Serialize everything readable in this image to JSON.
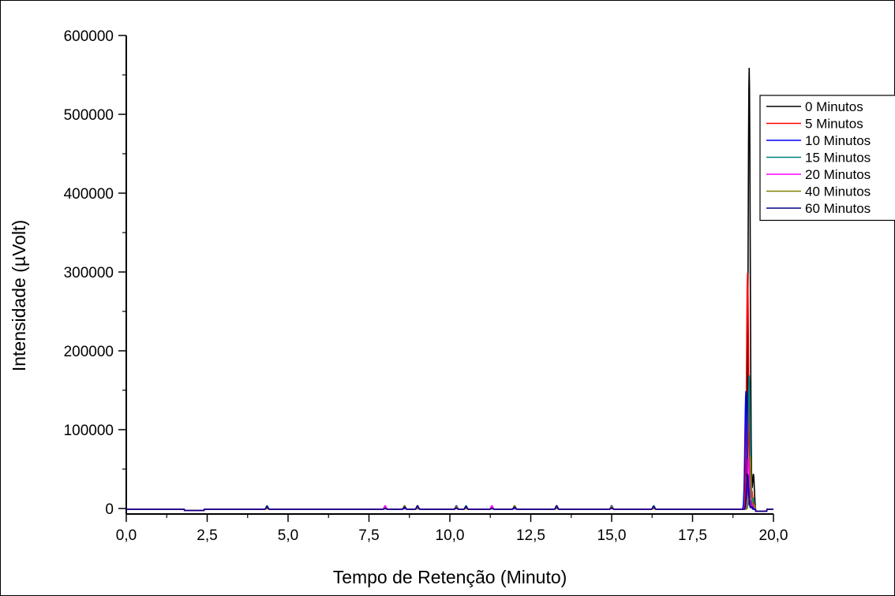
{
  "chart_data": {
    "type": "line",
    "title": "",
    "xlabel": "Tempo de Retenção (Minuto)",
    "ylabel": "Intensidade (µVolt)",
    "xlim": [
      0,
      20
    ],
    "ylim": [
      -7000,
      600000
    ],
    "x_ticks": [
      0,
      2.5,
      5,
      7.5,
      10,
      12.5,
      15,
      17.5,
      20
    ],
    "x_tick_labels": [
      "0,0",
      "2,5",
      "5,0",
      "7,5",
      "10,0",
      "12,5",
      "15,0",
      "17,5",
      "20,0"
    ],
    "y_ticks": [
      0,
      100000,
      200000,
      300000,
      400000,
      500000,
      600000
    ],
    "y_tick_labels": [
      "0",
      "100000",
      "200000",
      "300000",
      "400000",
      "500000",
      "600000"
    ],
    "grid": false,
    "legend_position": "top-right",
    "series": [
      {
        "name": "0 Minutos",
        "color": "#000000",
        "peak_x": 19.25,
        "peak_y": 560000
      },
      {
        "name": "5 Minutos",
        "color": "#ff0000",
        "peak_x": 19.2,
        "peak_y": 300000
      },
      {
        "name": "10 Minutos",
        "color": "#0000ff",
        "peak_x": 19.15,
        "peak_y": 150000
      },
      {
        "name": "15 Minutos",
        "color": "#008080",
        "peak_x": 19.25,
        "peak_y": 170000
      },
      {
        "name": "20 Minutos",
        "color": "#ff00ff",
        "peak_x": 19.22,
        "peak_y": 65000
      },
      {
        "name": "40 Minutos",
        "color": "#808000",
        "peak_x": 19.28,
        "peak_y": 67000
      },
      {
        "name": "60 Minutos",
        "color": "#000080",
        "peak_x": 19.2,
        "peak_y": 45000
      }
    ]
  }
}
